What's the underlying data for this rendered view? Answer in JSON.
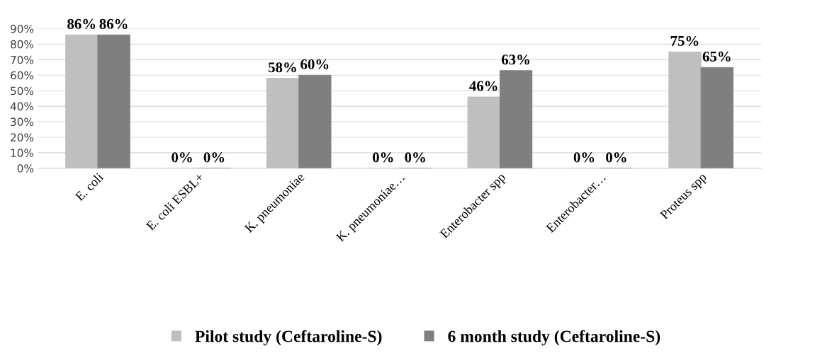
{
  "chart_data": {
    "type": "bar",
    "categories": [
      "E. coli",
      "E. coli ESBL+",
      "K. pneumoniae",
      "K. pneumoniae…",
      "Enterobacter spp",
      "Enterobacter…",
      "Proteus spp"
    ],
    "series": [
      {
        "name": "Pilot study (Ceftaroline-S)",
        "color": "#bfbfbf",
        "values": [
          86,
          0,
          58,
          0,
          46,
          0,
          75
        ],
        "value_labels": [
          "86%",
          "0%",
          "58%",
          "0%",
          "46%",
          "0%",
          "75%"
        ]
      },
      {
        "name": "6 month study (Ceftaroline-S)",
        "color": "#7f7f7f",
        "values": [
          86,
          0,
          60,
          0,
          63,
          0,
          65
        ],
        "value_labels": [
          "86%",
          "0%",
          "60%",
          "0%",
          "63%",
          "0%",
          "65%"
        ]
      }
    ],
    "ylim": [
      0,
      90
    ],
    "yticks": [
      {
        "value": 0,
        "label": "0%"
      },
      {
        "value": 10,
        "label": "10%"
      },
      {
        "value": 20,
        "label": "20%"
      },
      {
        "value": 30,
        "label": "30%"
      },
      {
        "value": 40,
        "label": "40%"
      },
      {
        "value": 50,
        "label": "50%"
      },
      {
        "value": 60,
        "label": "60%"
      },
      {
        "value": 70,
        "label": "70%"
      },
      {
        "value": 80,
        "label": "80%"
      },
      {
        "value": 90,
        "label": "90%"
      }
    ],
    "grid": "y",
    "legend": "bottom"
  }
}
